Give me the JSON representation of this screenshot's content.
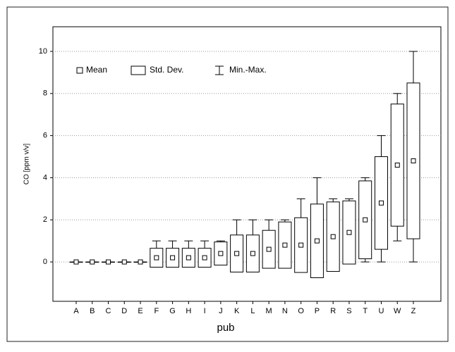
{
  "chart_data": {
    "type": "meanbox",
    "x_label": "pub",
    "y_label": "CO [ppm v/v]",
    "legend": [
      "Mean",
      "Std. Dev.",
      "Min.-Max."
    ],
    "categories": [
      "A",
      "B",
      "C",
      "D",
      "E",
      "F",
      "G",
      "H",
      "I",
      "J",
      "K",
      "L",
      "M",
      "N",
      "O",
      "P",
      "R",
      "S",
      "T",
      "U",
      "W",
      "Z"
    ],
    "mean": [
      0,
      0,
      0,
      0,
      0,
      0.2,
      0.2,
      0.2,
      0.2,
      0.4,
      0.4,
      0.4,
      0.6,
      0.8,
      0.8,
      1.0,
      1.2,
      1.4,
      2.0,
      2.8,
      4.6,
      4.8
    ],
    "sd": [
      0,
      0,
      0,
      0,
      0,
      0.45,
      0.45,
      0.45,
      0.45,
      0.55,
      0.88,
      0.88,
      0.9,
      1.1,
      1.3,
      1.75,
      1.65,
      1.5,
      1.85,
      2.2,
      2.9,
      3.7
    ],
    "min": [
      0,
      0,
      0,
      0,
      0,
      0,
      0,
      0,
      0,
      0,
      0,
      0,
      0,
      0,
      0,
      0,
      0,
      0,
      0,
      0,
      1,
      0
    ],
    "max": [
      0,
      0,
      0,
      0,
      0,
      1,
      1,
      1,
      1,
      1,
      2,
      2,
      2,
      2,
      3,
      4,
      3,
      3,
      4,
      6,
      8,
      10
    ],
    "ylim": [
      -1.87,
      11.17
    ],
    "yticks": [
      0,
      2,
      4,
      6,
      8,
      10
    ],
    "grid": true,
    "color": "#000000"
  }
}
